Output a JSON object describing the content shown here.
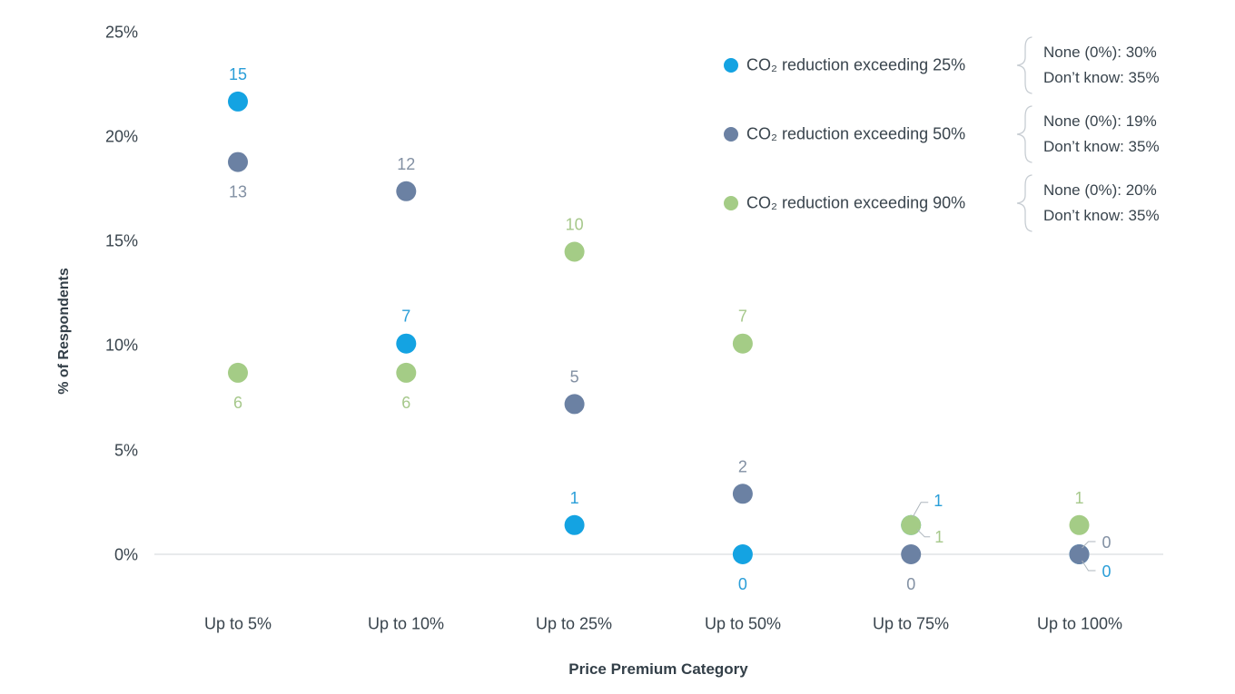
{
  "chart_data": {
    "type": "scatter",
    "title": "",
    "xlabel": "Price Premium Category",
    "ylabel": "% of Respondents",
    "categories": [
      "Up to 5%",
      "Up to 10%",
      "Up to 25%",
      "Up to 50%",
      "Up to 75%",
      "Up to 100%"
    ],
    "y_ticks": [
      "25%",
      "20%",
      "15%",
      "10%",
      "5%",
      "0%"
    ],
    "ylim": [
      0,
      25
    ],
    "grid": false,
    "legend_position": "top-right",
    "axis_line_color": "#e8eaec",
    "leader_line_color": "#aeb6bd",
    "series": [
      {
        "name": "CO₂ reduction exceeding 25%",
        "color": "#14a3e2",
        "label_color": "#2a9ed8",
        "annotation": [
          "None (0%): 30%",
          "Don’t know: 35%"
        ],
        "points": [
          {
            "category": "Up to 5%",
            "count": 15,
            "percent": 21.7,
            "label_placement": "above"
          },
          {
            "category": "Up to 10%",
            "count": 7,
            "percent": 10.1,
            "label_placement": "above"
          },
          {
            "category": "Up to 25%",
            "count": 1,
            "percent": 1.4,
            "label_placement": "above"
          },
          {
            "category": "Up to 50%",
            "count": 0,
            "percent": 0,
            "label_placement": "below"
          },
          {
            "category": "Up to 75%",
            "count": 1,
            "percent": 1.4,
            "label_placement": "leader-ne"
          },
          {
            "category": "Up to 100%",
            "count": 0,
            "percent": 0,
            "label_placement": "leader-se-lg"
          }
        ]
      },
      {
        "name": "CO₂ reduction exceeding 50%",
        "color": "#6b81a3",
        "label_color": "#8290a3",
        "annotation": [
          "None (0%): 19%",
          "Don’t know: 35%"
        ],
        "points": [
          {
            "category": "Up to 5%",
            "count": 13,
            "percent": 18.8,
            "label_placement": "below"
          },
          {
            "category": "Up to 10%",
            "count": 12,
            "percent": 17.4,
            "label_placement": "above"
          },
          {
            "category": "Up to 25%",
            "count": 5,
            "percent": 7.2,
            "label_placement": "above"
          },
          {
            "category": "Up to 50%",
            "count": 2,
            "percent": 2.9,
            "label_placement": "above"
          },
          {
            "category": "Up to 75%",
            "count": 0,
            "percent": 0,
            "label_placement": "below"
          },
          {
            "category": "Up to 100%",
            "count": 0,
            "percent": 0,
            "label_placement": "leader-ne-sm"
          }
        ]
      },
      {
        "name": "CO₂ reduction exceeding 90%",
        "color": "#a4cc86",
        "label_color": "#a6c88b",
        "annotation": [
          "None (0%): 20%",
          "Don’t know: 35%"
        ],
        "points": [
          {
            "category": "Up to 5%",
            "count": 6,
            "percent": 8.7,
            "label_placement": "below"
          },
          {
            "category": "Up to 10%",
            "count": 6,
            "percent": 8.7,
            "label_placement": "below"
          },
          {
            "category": "Up to 25%",
            "count": 10,
            "percent": 14.5,
            "label_placement": "above"
          },
          {
            "category": "Up to 50%",
            "count": 7,
            "percent": 10.1,
            "label_placement": "above"
          },
          {
            "category": "Up to 75%",
            "count": 1,
            "percent": 1.4,
            "label_placement": "leader-se"
          },
          {
            "category": "Up to 100%",
            "count": 1,
            "percent": 1.4,
            "label_placement": "above"
          }
        ]
      }
    ]
  }
}
